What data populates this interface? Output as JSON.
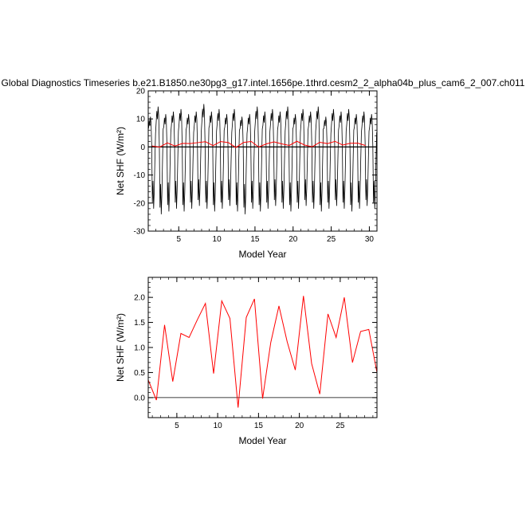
{
  "title": "Global Diagnostics Timeseries b.e21.B1850.ne30pg3_g17.intel.1656pe.1thrd.cesm2_2_alpha04b_plus_cam6_2_007.ch011",
  "chart_data": [
    {
      "type": "line",
      "xlabel": "Model Year",
      "ylabel": "Net SHF (W/m²)",
      "xlim": [
        1,
        31
      ],
      "ylim": [
        -30,
        20
      ],
      "xticks": [
        5,
        10,
        15,
        20,
        25,
        30
      ],
      "yticks": [
        -30,
        -20,
        -10,
        0,
        10,
        20
      ],
      "zero_line": 0,
      "series": [
        {
          "color": "#000000",
          "style": "monthly seasonal cycle",
          "annual_max": [
            12,
            16,
            13,
            14,
            15,
            13,
            14,
            17,
            14,
            15,
            13,
            15,
            12,
            13,
            16,
            14,
            15,
            14,
            16,
            13,
            15,
            14,
            16,
            12,
            15,
            14,
            15,
            13,
            14,
            13
          ],
          "annual_min": [
            -22,
            -24,
            -23,
            -22,
            -23,
            -22,
            -21,
            -22,
            -23,
            -22,
            -21,
            -23,
            -24,
            -22,
            -23,
            -22,
            -21,
            -22,
            -23,
            -22,
            -21,
            -22,
            -23,
            -22,
            -21,
            -22,
            -23,
            -22,
            -21,
            -22
          ]
        },
        {
          "color": "#ff0000",
          "style": "annual mean",
          "x": [
            1.5,
            2.5,
            3.5,
            4.5,
            5.5,
            6.5,
            7.5,
            8.5,
            9.5,
            10.5,
            11.5,
            12.5,
            13.5,
            14.5,
            15.5,
            16.5,
            17.5,
            18.5,
            19.5,
            20.5,
            21.5,
            22.5,
            23.5,
            24.5,
            25.5,
            26.5,
            27.5,
            28.5,
            29.5
          ],
          "y": [
            0.35,
            -0.05,
            1.45,
            0.32,
            1.28,
            1.2,
            1.55,
            1.88,
            0.48,
            1.93,
            1.58,
            -0.2,
            1.6,
            1.97,
            -0.02,
            1.1,
            1.83,
            1.12,
            0.55,
            2.03,
            0.68,
            0.07,
            1.67,
            1.2,
            2.0,
            0.7,
            1.32,
            1.36,
            0.5
          ]
        }
      ]
    },
    {
      "type": "line",
      "xlabel": "Model Year",
      "ylabel": "Net SHF (W/m²)",
      "xlim": [
        1.5,
        29.5
      ],
      "ylim": [
        -0.4,
        2.4
      ],
      "xticks": [
        5,
        10,
        15,
        20,
        25
      ],
      "yticks": [
        0.0,
        0.5,
        1.0,
        1.5,
        2.0
      ],
      "ytick_labels": [
        "0.0",
        "0.5",
        "1.0",
        "1.5",
        "2.0"
      ],
      "zero_line": 0,
      "series": [
        {
          "color": "#ff0000",
          "x": [
            1.5,
            2.5,
            3.5,
            4.5,
            5.5,
            6.5,
            7.5,
            8.5,
            9.5,
            10.5,
            11.5,
            12.5,
            13.5,
            14.5,
            15.5,
            16.5,
            17.5,
            18.5,
            19.5,
            20.5,
            21.5,
            22.5,
            23.5,
            24.5,
            25.5,
            26.5,
            27.5,
            28.5,
            29.5
          ],
          "y": [
            0.35,
            -0.05,
            1.45,
            0.32,
            1.28,
            1.2,
            1.55,
            1.88,
            0.48,
            1.93,
            1.58,
            -0.2,
            1.6,
            1.97,
            -0.02,
            1.1,
            1.83,
            1.12,
            0.55,
            2.03,
            0.68,
            0.07,
            1.67,
            1.2,
            2.0,
            0.7,
            1.32,
            1.36,
            0.5
          ]
        }
      ]
    }
  ]
}
